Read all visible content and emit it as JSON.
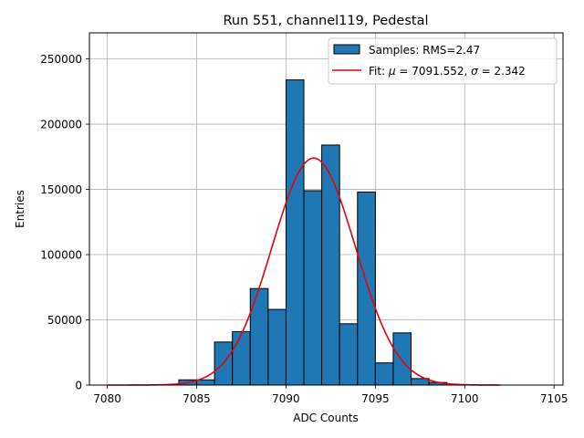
{
  "chart_data": {
    "type": "bar",
    "title": "Run 551, channel119, Pedestal",
    "xlabel": "ADC Counts",
    "ylabel": "Entries",
    "xlim": [
      7079,
      7105.5
    ],
    "ylim": [
      0,
      270000
    ],
    "xticks": [
      7080,
      7085,
      7090,
      7095,
      7100,
      7105
    ],
    "yticks": [
      0,
      50000,
      100000,
      150000,
      200000,
      250000
    ],
    "grid": true,
    "legend_position": "top-right",
    "bin_width": 1,
    "bins": [
      {
        "x0": 7084,
        "value": 4000
      },
      {
        "x0": 7085,
        "value": 4000
      },
      {
        "x0": 7086,
        "value": 33000
      },
      {
        "x0": 7087,
        "value": 41000
      },
      {
        "x0": 7088,
        "value": 74000
      },
      {
        "x0": 7089,
        "value": 58000
      },
      {
        "x0": 7090,
        "value": 234000
      },
      {
        "x0": 7091,
        "value": 149000
      },
      {
        "x0": 7092,
        "value": 184000
      },
      {
        "x0": 7093,
        "value": 47000
      },
      {
        "x0": 7094,
        "value": 148000
      },
      {
        "x0": 7095,
        "value": 17000
      },
      {
        "x0": 7096,
        "value": 40000
      },
      {
        "x0": 7097,
        "value": 5000
      },
      {
        "x0": 7098,
        "value": 2000
      }
    ],
    "fit": {
      "mu": 7091.552,
      "sigma": 2.342,
      "amplitude": 174000,
      "x_range": [
        7080,
        7102
      ]
    },
    "series": [
      {
        "name": "Samples: RMS=2.47",
        "color": "#1f77b4"
      },
      {
        "name_prefix": "Fit: ",
        "mu_symbol": "μ",
        "mu_text": " = 7091.552, ",
        "sigma_symbol": "σ",
        "sigma_text": " = 2.342",
        "color": "#e8000b"
      }
    ]
  }
}
